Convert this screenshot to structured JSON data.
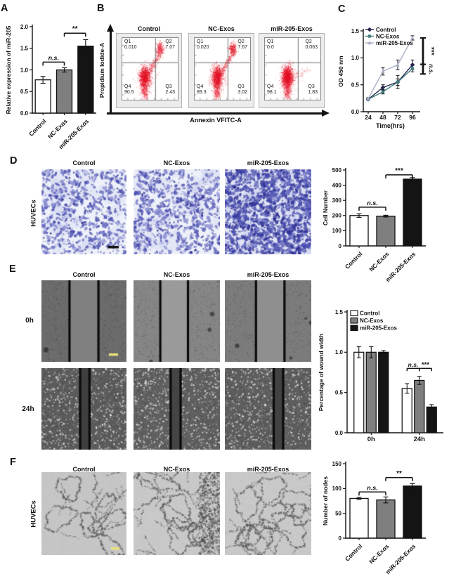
{
  "figure": {
    "background": "#ffffff"
  },
  "group_labels": [
    "Control",
    "NC-Exos",
    "miR-205-Exos"
  ],
  "panels": {
    "A": {
      "letter": "A"
    },
    "B": {
      "letter": "B",
      "x_axis_label": "Annexin VFITC-A",
      "y_axis_label": "Propidium Iodide-A"
    },
    "C": {
      "letter": "C"
    },
    "D": {
      "letter": "D",
      "row_label": "HUVECs"
    },
    "E": {
      "letter": "E",
      "row_labels": [
        "0h",
        "24h"
      ]
    },
    "F": {
      "letter": "F",
      "row_label": "HUVECs"
    }
  },
  "chart_data": [
    {
      "id": "A-mir205-expression",
      "type": "bar",
      "categories": [
        "Control",
        "NC-Exos",
        "miR-205-Exos"
      ],
      "values": [
        0.77,
        1.0,
        1.55
      ],
      "errors": [
        0.08,
        0.05,
        0.15
      ],
      "bar_colors": [
        "#ffffff",
        "#7f7f7f",
        "#141414"
      ],
      "ylabel": "Relative expression of miR-205",
      "ylim": [
        0,
        2.0
      ],
      "yticks": [
        0,
        0.5,
        1.0,
        1.5,
        2.0
      ],
      "ytick_labels": [
        "0.0",
        "0.5",
        "1.0",
        "1.5",
        "2.0"
      ],
      "significance": [
        {
          "from": 0,
          "to": 1,
          "label": "n.s.",
          "y": 1.18
        },
        {
          "from": 1,
          "to": 2,
          "label": "**",
          "y": 1.85
        }
      ]
    },
    {
      "id": "B-apoptosis-flow-cytometry",
      "type": "scatter",
      "xlabel": "Annexin VFITC-A",
      "ylabel": "Propidium Iodide-A",
      "quadrant_labels": [
        "Q1",
        "Q2",
        "Q3",
        "Q4"
      ],
      "plots": [
        {
          "title": "Control",
          "values": {
            "q1": "0.010",
            "q2": "7.07",
            "q3": "2.43",
            "q4": "90.5"
          }
        },
        {
          "title": "NC-Exos",
          "values": {
            "q1": "0.020",
            "q2": "7.67",
            "q3": "3.02",
            "q4": "89.3"
          }
        },
        {
          "title": "miR-205-Exos",
          "values": {
            "q1": "0.0",
            "q2": "0.063",
            "q3": "1.83",
            "q4": "98.1"
          }
        }
      ]
    },
    {
      "id": "C-cck8-proliferation",
      "type": "line",
      "x": [
        24,
        48,
        72,
        96
      ],
      "xtick_labels": [
        "24",
        "48",
        "72",
        "96"
      ],
      "xlabel": "Time(hrs)",
      "ylabel": "OD 450 nm",
      "ylim": [
        0,
        1.5
      ],
      "yticks": [
        0,
        0.5,
        1.0,
        1.5
      ],
      "ytick_labels": [
        "0.0",
        "0.5",
        "1.0",
        "1.5"
      ],
      "legend_position": "top-left",
      "series": [
        {
          "name": "Control",
          "color": "#26264f",
          "marker": "diamond",
          "values": [
            0.23,
            0.45,
            0.55,
            0.87
          ],
          "errors": [
            0.02,
            0.05,
            0.06,
            0.09
          ]
        },
        {
          "name": "NC-Exos",
          "color": "#417c7e",
          "marker": "square",
          "values": [
            0.23,
            0.37,
            0.55,
            0.8
          ],
          "errors": [
            0.02,
            0.04,
            0.12,
            0.06
          ]
        },
        {
          "name": "miR-205-Exos",
          "color": "#a9b0c6",
          "marker": "triangle",
          "values": [
            0.24,
            0.75,
            0.87,
            1.37
          ],
          "errors": [
            0.02,
            0.07,
            0.09,
            0.04
          ]
        }
      ],
      "annotations": [
        {
          "label": "***",
          "y_from": 1.37,
          "y_to": 0.88
        },
        {
          "label": "n.s.",
          "y_from": 0.88,
          "y_to": 0.7
        }
      ]
    },
    {
      "id": "D-migration-cell-number",
      "type": "bar",
      "categories": [
        "Control",
        "NC-Exos",
        "miR-205-Exos"
      ],
      "values": [
        200,
        196,
        440
      ],
      "errors": [
        12,
        6,
        10
      ],
      "bar_colors": [
        "#ffffff",
        "#7f7f7f",
        "#141414"
      ],
      "ylabel": "Cell Number",
      "ylim": [
        0,
        500
      ],
      "yticks": [
        0,
        100,
        200,
        300,
        400,
        500
      ],
      "ytick_labels": [
        "0",
        "100",
        "200",
        "300",
        "400",
        "500"
      ],
      "significance": [
        {
          "from": 0,
          "to": 1,
          "label": "n.s.",
          "y": 255
        },
        {
          "from": 1,
          "to": 2,
          "label": "***",
          "y": 468
        }
      ]
    },
    {
      "id": "E-wound-width",
      "type": "grouped-bar",
      "groups": [
        "0h",
        "24h"
      ],
      "series": [
        {
          "name": "Control",
          "color": "#ffffff",
          "values": [
            1.0,
            0.55
          ],
          "errors": [
            0.07,
            0.06
          ]
        },
        {
          "name": "NC-Exos",
          "color": "#7f7f7f",
          "values": [
            1.0,
            0.65
          ],
          "errors": [
            0.07,
            0.05
          ]
        },
        {
          "name": "miR-205-Exos",
          "color": "#141414",
          "values": [
            1.0,
            0.32
          ],
          "errors": [
            0.02,
            0.03
          ]
        }
      ],
      "ylabel": "Percentage of wound width",
      "ylim": [
        0,
        1.5
      ],
      "yticks": [
        0,
        0.5,
        1.0,
        1.5
      ],
      "ytick_labels": [
        "0.0",
        "0.5",
        "1.0",
        "1.5"
      ],
      "legend_position": "top-left",
      "significance": [
        {
          "group": 1,
          "from": 0,
          "to": 1,
          "label": "n.s.",
          "y": 0.8
        },
        {
          "group": 1,
          "from": 1,
          "to": 2,
          "label": "***",
          "y": 0.8
        }
      ]
    },
    {
      "id": "F-tube-formation-nodes",
      "type": "bar",
      "categories": [
        "Control",
        "NC-Exos",
        "miR-205-Exos"
      ],
      "values": [
        80,
        77,
        105
      ],
      "errors": [
        2,
        6,
        5
      ],
      "bar_colors": [
        "#ffffff",
        "#7f7f7f",
        "#141414"
      ],
      "ylabel": "Number of nodes",
      "ylim": [
        0,
        150
      ],
      "yticks": [
        0,
        50,
        100,
        150
      ],
      "ytick_labels": [
        "0",
        "50",
        "100",
        "150"
      ],
      "significance": [
        {
          "from": 0,
          "to": 1,
          "label": "n.s.",
          "y": 93
        },
        {
          "from": 1,
          "to": 2,
          "label": "**",
          "y": 122
        }
      ]
    }
  ]
}
